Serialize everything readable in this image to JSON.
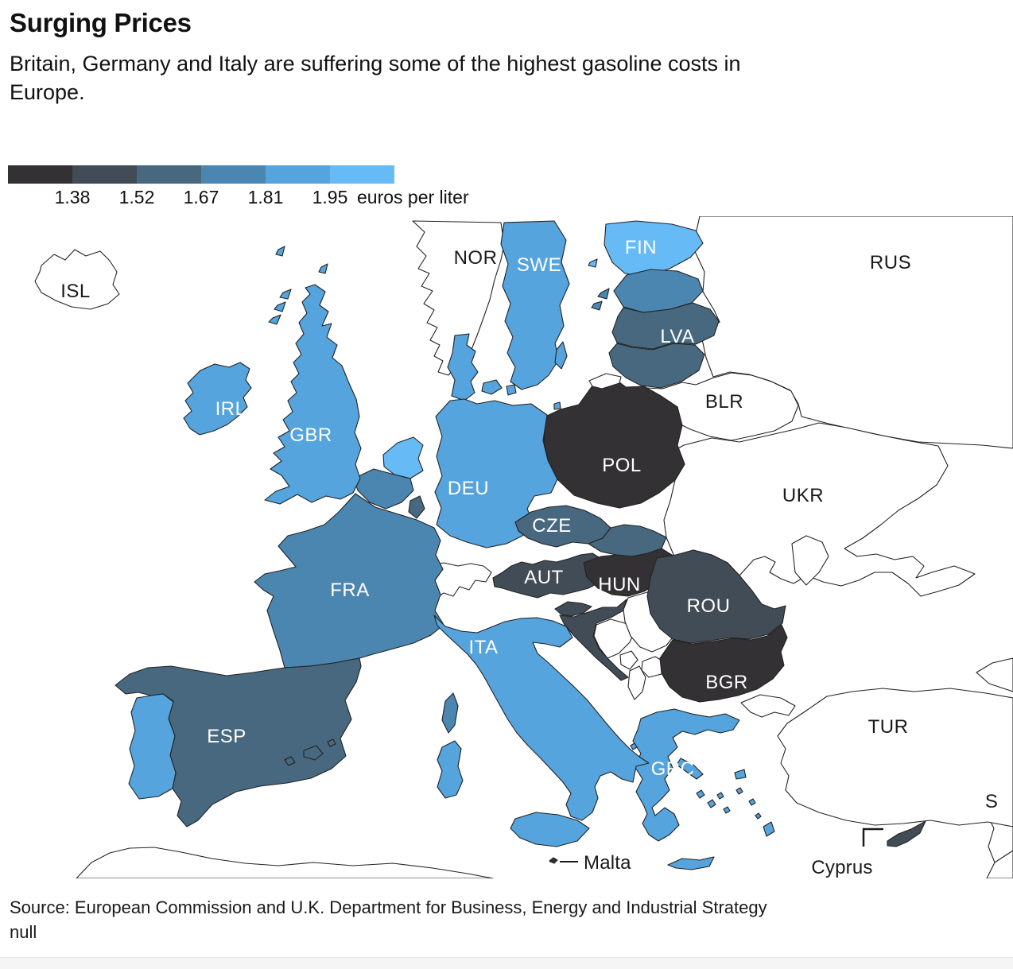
{
  "header": {
    "title": "Surging Prices",
    "subtitle_line1": "Britain, Germany and Italy are suffering some of the highest gasoline costs in",
    "subtitle_line2": "Europe."
  },
  "legend": {
    "colors": [
      "#343134",
      "#424c56",
      "#47687f",
      "#4b86b1",
      "#55a4dd",
      "#66baf6"
    ],
    "ticks": [
      "1.38",
      "1.52",
      "1.67",
      "1.81",
      "1.95"
    ],
    "unit": "euros per liter"
  },
  "map": {
    "no_data_fill": "#ffffff",
    "border_color": "#222222",
    "regions": {
      "POL": 0,
      "HUN": 0,
      "BGR": 0,
      "MLT": 0,
      "AUT": 1,
      "ROU": 1,
      "HRV": 1,
      "SVN": 1,
      "CYP": 1,
      "ESP": 2,
      "LVA": 2,
      "LTU": 2,
      "LUX": 2,
      "CZE": 2,
      "SVK": 2,
      "FRA": 3,
      "BEL": 3,
      "EST": 3,
      "GBR": 4,
      "IRL": 4,
      "SWE": 4,
      "DNK": 4,
      "DEU": 4,
      "ITA": 4,
      "PRT": 4,
      "GRC": 4,
      "FIN": 5,
      "NLD": 5
    },
    "labels": [
      {
        "text": "ISL",
        "variant": "dark"
      },
      {
        "text": "NOR",
        "variant": "dark"
      },
      {
        "text": "RUS",
        "variant": "dark"
      },
      {
        "text": "BLR",
        "variant": "dark"
      },
      {
        "text": "UKR",
        "variant": "dark"
      },
      {
        "text": "TUR",
        "variant": "dark"
      },
      {
        "text": "SWE",
        "variant": "light"
      },
      {
        "text": "FIN",
        "variant": "light"
      },
      {
        "text": "IRL",
        "variant": "light"
      },
      {
        "text": "GBR",
        "variant": "light"
      },
      {
        "text": "LVA",
        "variant": "light"
      },
      {
        "text": "DEU",
        "variant": "light"
      },
      {
        "text": "POL",
        "variant": "light"
      },
      {
        "text": "CZE",
        "variant": "light"
      },
      {
        "text": "AUT",
        "variant": "light"
      },
      {
        "text": "HUN",
        "variant": "light"
      },
      {
        "text": "FRA",
        "variant": "light"
      },
      {
        "text": "ROU",
        "variant": "light"
      },
      {
        "text": "ITA",
        "variant": "light"
      },
      {
        "text": "ESP",
        "variant": "light"
      },
      {
        "text": "BGR",
        "variant": "light"
      },
      {
        "text": "GRC",
        "variant": "light"
      }
    ],
    "annotations": [
      {
        "id": "malta",
        "text": "Malta"
      },
      {
        "id": "cyprus",
        "text": "Cyprus"
      },
      {
        "id": "cutoff",
        "text": "S"
      }
    ]
  },
  "source": {
    "line1": "Source: European Commission and U.K. Department for Business, Energy and Industrial Strategy",
    "line2": "null"
  },
  "chart_data": {
    "type": "heatmap",
    "subtype": "choropleth map of Europe",
    "title": "Surging Prices",
    "subtitle": "Britain, Germany and Italy are suffering some of the highest gasoline costs in Europe.",
    "unit": "euros per liter",
    "legend_position": "top-left",
    "scale": {
      "tick_values": [
        1.38,
        1.52,
        1.67,
        1.81,
        1.95
      ],
      "colors_dark_to_light": [
        "#343134",
        "#424c56",
        "#47687f",
        "#4b86b1",
        "#55a4dd",
        "#66baf6"
      ],
      "bins": [
        "< 1.38",
        "1.38-1.52",
        "1.52-1.67",
        "1.67-1.81",
        "1.81-1.95",
        "> 1.95"
      ]
    },
    "regions": [
      {
        "code": "POL",
        "bin": "< 1.38"
      },
      {
        "code": "HUN",
        "bin": "< 1.38"
      },
      {
        "code": "BGR",
        "bin": "< 1.38"
      },
      {
        "code": "MLT",
        "bin": "< 1.38"
      },
      {
        "code": "AUT",
        "bin": "1.38-1.52"
      },
      {
        "code": "ROU",
        "bin": "1.38-1.52"
      },
      {
        "code": "HRV",
        "bin": "1.38-1.52"
      },
      {
        "code": "SVN",
        "bin": "1.38-1.52"
      },
      {
        "code": "CYP",
        "bin": "1.38-1.52"
      },
      {
        "code": "ESP",
        "bin": "1.52-1.67"
      },
      {
        "code": "LVA",
        "bin": "1.52-1.67"
      },
      {
        "code": "LTU",
        "bin": "1.52-1.67"
      },
      {
        "code": "LUX",
        "bin": "1.52-1.67"
      },
      {
        "code": "CZE",
        "bin": "1.52-1.67"
      },
      {
        "code": "SVK",
        "bin": "1.52-1.67"
      },
      {
        "code": "FRA",
        "bin": "1.67-1.81"
      },
      {
        "code": "BEL",
        "bin": "1.67-1.81"
      },
      {
        "code": "EST",
        "bin": "1.67-1.81"
      },
      {
        "code": "GBR",
        "bin": "1.81-1.95"
      },
      {
        "code": "IRL",
        "bin": "1.81-1.95"
      },
      {
        "code": "SWE",
        "bin": "1.81-1.95"
      },
      {
        "code": "DNK",
        "bin": "1.81-1.95"
      },
      {
        "code": "DEU",
        "bin": "1.81-1.95"
      },
      {
        "code": "ITA",
        "bin": "1.81-1.95"
      },
      {
        "code": "PRT",
        "bin": "1.81-1.95"
      },
      {
        "code": "GRC",
        "bin": "1.81-1.95"
      },
      {
        "code": "FIN",
        "bin": "> 1.95"
      },
      {
        "code": "NLD",
        "bin": "> 1.95"
      }
    ],
    "no_data_regions": [
      "ISL",
      "NOR",
      "RUS",
      "BLR",
      "UKR",
      "MDA",
      "TUR",
      "CHE",
      "SRB",
      "BIH",
      "MNE",
      "ALB",
      "MKD"
    ],
    "source": "Source: European Commission and U.K. Department for Business, Energy and Industrial Strategy"
  }
}
